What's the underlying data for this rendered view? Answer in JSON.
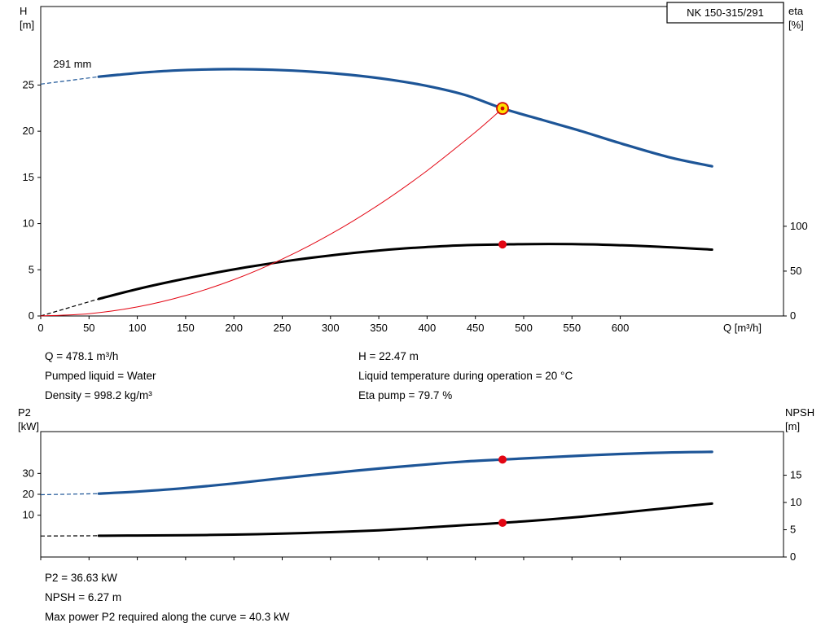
{
  "info_top": {
    "q": "Q = 478.1 m³/h",
    "pumped_liquid": "Pumped liquid = Water",
    "density": "Density = 998.2 kg/m³",
    "h": "H = 22.47 m",
    "liquid_temperature": "Liquid temperature during operation = 20 °C",
    "eta_pump": "Eta pump = 79.7 %"
  },
  "info_bottom": {
    "p2": "P2 = 36.63 kW",
    "npsh": "NPSH = 6.27 m",
    "max_power": "Max power P2 required along the curve = 40.3 kW"
  },
  "chart_data": [
    {
      "id": "hq",
      "type": "line",
      "title": "NK 150-315/291",
      "x_axis": {
        "label": "Q [m³/h]",
        "lim": [
          0,
          769
        ],
        "ticks": [
          0,
          50,
          100,
          150,
          200,
          250,
          300,
          350,
          400,
          450,
          500,
          550,
          600
        ],
        "show_labels": true
      },
      "y_left": {
        "label_lines": [
          "H",
          "[m]"
        ],
        "lim": [
          0,
          33.5
        ],
        "ticks": [
          0,
          5,
          10,
          15,
          20,
          25
        ]
      },
      "y_right": {
        "label_lines": [
          "eta",
          "[%]"
        ],
        "lim": [
          0,
          345
        ],
        "ticks": [
          0,
          50,
          100
        ]
      },
      "grid": false,
      "series": [
        {
          "name": "pump-curve",
          "label": "291 mm",
          "axis": "left",
          "color": "#1d5597",
          "width": 3.2,
          "dash_lead": [
            [
              0,
              25.1
            ],
            [
              60,
              25.9
            ]
          ],
          "points": [
            [
              60,
              25.9
            ],
            [
              80,
              26.1
            ],
            [
              100,
              26.3
            ],
            [
              130,
              26.52
            ],
            [
              160,
              26.65
            ],
            [
              200,
              26.72
            ],
            [
              240,
              26.65
            ],
            [
              280,
              26.45
            ],
            [
              320,
              26.1
            ],
            [
              360,
              25.6
            ],
            [
              400,
              24.9
            ],
            [
              440,
              23.9
            ],
            [
              478.1,
              22.47
            ],
            [
              520,
              21.2
            ],
            [
              560,
              20.0
            ],
            [
              600,
              18.7
            ],
            [
              650,
              17.2
            ],
            [
              695,
              16.2
            ]
          ]
        },
        {
          "name": "efficiency-curve",
          "axis": "right",
          "color": "#000000",
          "width": 3,
          "dash_lead": [
            [
              0,
              0
            ],
            [
              60,
              19
            ]
          ],
          "points": [
            [
              60,
              19
            ],
            [
              100,
              30
            ],
            [
              140,
              39.5
            ],
            [
              180,
              48
            ],
            [
              220,
              55.5
            ],
            [
              260,
              62
            ],
            [
              300,
              67.5
            ],
            [
              340,
              72
            ],
            [
              380,
              75.5
            ],
            [
              420,
              78
            ],
            [
              450,
              79.2
            ],
            [
              478.1,
              79.7
            ],
            [
              510,
              80.2
            ],
            [
              550,
              80.1
            ],
            [
              590,
              79.2
            ],
            [
              640,
              77.2
            ],
            [
              695,
              74
            ]
          ]
        },
        {
          "name": "system-curve",
          "axis": "left",
          "color": "#e30613",
          "width": 1,
          "points": [
            [
              0,
              0
            ],
            [
              50,
              0.25
            ],
            [
              100,
              0.98
            ],
            [
              150,
              2.21
            ],
            [
              200,
              3.93
            ],
            [
              250,
              6.15
            ],
            [
              300,
              8.85
            ],
            [
              350,
              12.04
            ],
            [
              400,
              15.73
            ],
            [
              450,
              19.9
            ],
            [
              478.1,
              22.47
            ]
          ]
        }
      ],
      "annotations": [
        {
          "text": "291 mm",
          "q": 13,
          "v": 26.9,
          "axis": "left"
        }
      ],
      "markers": [
        {
          "name": "duty-point-marker",
          "axis": "left",
          "q": 478.1,
          "v": 22.47,
          "r": 7,
          "fill": "#ffe000",
          "stroke": "#cf0a0a",
          "stroke_width": 1.8,
          "inner_r": 2.4,
          "inner_fill": "#cf0a0a"
        },
        {
          "name": "eta-duty-marker",
          "axis": "right",
          "q": 478.1,
          "v": 79.7,
          "r": 5,
          "fill": "#e30613"
        }
      ]
    },
    {
      "id": "pn",
      "type": "line",
      "x_axis": {
        "lim": [
          0,
          769
        ],
        "ticks": [
          0,
          50,
          100,
          150,
          200,
          250,
          300,
          350,
          400,
          450,
          500,
          550,
          600
        ],
        "show_labels": false
      },
      "y_left": {
        "label_lines": [
          "P2",
          "[kW]"
        ],
        "lim": [
          -10,
          50
        ],
        "ticks": [
          10,
          20,
          30
        ]
      },
      "y_right": {
        "label_lines": [
          "NPSH",
          "[m]"
        ],
        "lim": [
          0,
          23
        ],
        "ticks": [
          0,
          5,
          10,
          15
        ]
      },
      "grid": false,
      "series": [
        {
          "name": "p2-curve",
          "axis": "left",
          "color": "#1d5597",
          "width": 3.2,
          "dash_lead": [
            [
              0,
              19.8
            ],
            [
              60,
              20.3
            ]
          ],
          "points": [
            [
              60,
              20.3
            ],
            [
              100,
              21.3
            ],
            [
              150,
              23.0
            ],
            [
              200,
              25.2
            ],
            [
              250,
              27.7
            ],
            [
              300,
              30.1
            ],
            [
              350,
              32.3
            ],
            [
              400,
              34.3
            ],
            [
              440,
              35.7
            ],
            [
              478.1,
              36.63
            ],
            [
              520,
              37.6
            ],
            [
              560,
              38.5
            ],
            [
              600,
              39.3
            ],
            [
              650,
              40.0
            ],
            [
              695,
              40.3
            ]
          ]
        },
        {
          "name": "npsh-curve",
          "axis": "right",
          "color": "#000000",
          "width": 3,
          "dash_lead": [
            [
              0,
              3.85
            ],
            [
              60,
              3.9
            ]
          ],
          "points": [
            [
              60,
              3.9
            ],
            [
              100,
              3.95
            ],
            [
              150,
              4.0
            ],
            [
              200,
              4.1
            ],
            [
              250,
              4.3
            ],
            [
              300,
              4.55
            ],
            [
              350,
              4.9
            ],
            [
              400,
              5.4
            ],
            [
              440,
              5.85
            ],
            [
              478.1,
              6.27
            ],
            [
              520,
              6.8
            ],
            [
              560,
              7.4
            ],
            [
              600,
              8.1
            ],
            [
              650,
              9.0
            ],
            [
              695,
              9.8
            ]
          ]
        }
      ],
      "markers": [
        {
          "name": "p2-duty-marker",
          "axis": "left",
          "q": 478.1,
          "v": 36.63,
          "r": 5,
          "fill": "#e30613"
        },
        {
          "name": "npsh-duty-marker",
          "axis": "right",
          "q": 478.1,
          "v": 6.27,
          "r": 5,
          "fill": "#e30613"
        }
      ]
    }
  ]
}
